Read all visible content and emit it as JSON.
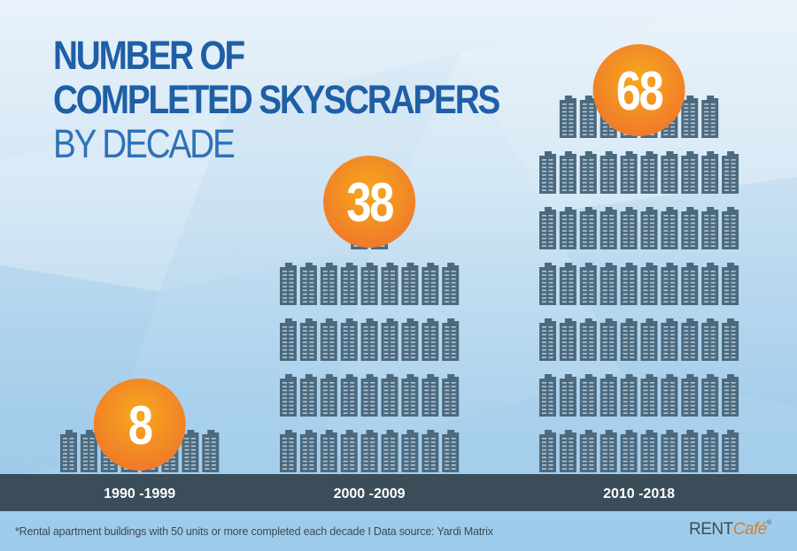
{
  "title": {
    "line1": "NUMBER OF",
    "line2": "COMPLETED SKYSCRAPERS",
    "line3": "BY DECADE"
  },
  "chart_data": {
    "type": "bar",
    "title": "NUMBER OF COMPLETED SKYSCRAPERS BY DECADE",
    "categories": [
      "1990 -1999",
      "2000 -2009",
      "2010 -2018"
    ],
    "values": [
      8,
      38,
      68
    ],
    "xlabel": "",
    "ylabel": "",
    "grid": false,
    "legend": "none",
    "mark": "building-icon"
  },
  "footnote": "*Rental apartment buildings with 50 units or more completed each decade  I  Data source: Yardi Matrix",
  "brand": {
    "name_main": "RENT",
    "name_accent": "Café",
    "reg": "®"
  },
  "colors": {
    "title": "#1e5fa6",
    "subtitle": "#2d72b8",
    "building": "#4c6a7f",
    "building_window": "#b3c7d4",
    "bubble_orange": "#f0782a",
    "bubble_yellow": "#f6a91c",
    "ground": "#3a4d59",
    "label_text": "#ffffff",
    "brand_accent": "#e07a24"
  }
}
